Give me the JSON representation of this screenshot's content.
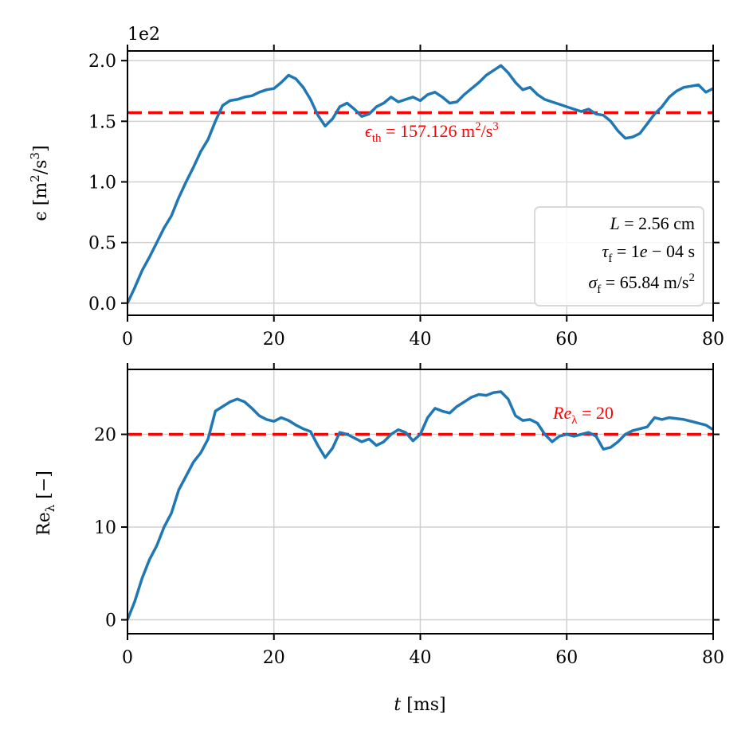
{
  "chart_data": [
    {
      "type": "line",
      "panel": "top",
      "xlabel": "",
      "ylabel": "ε [m²/s³]",
      "offset_text": "1e2",
      "xlim": [
        0,
        80
      ],
      "ylim": [
        -0.1,
        2.08
      ],
      "xticks": [
        0,
        20,
        40,
        60,
        80
      ],
      "xtick_labels": [
        "0",
        "20",
        "40",
        "60",
        "80"
      ],
      "yticks": [
        0.0,
        0.5,
        1.0,
        1.5,
        2.0
      ],
      "ytick_labels": [
        "0.0",
        "0.5",
        "1.0",
        "1.5",
        "2.0"
      ],
      "grid": true,
      "series": [
        {
          "name": "epsilon",
          "color": "#1f77b4",
          "x": [
            0,
            1,
            2,
            3,
            4,
            5,
            6,
            7,
            8,
            9,
            10,
            11,
            12,
            13,
            14,
            15,
            16,
            17,
            18,
            19,
            20,
            21,
            22,
            23,
            24,
            25,
            26,
            27,
            28,
            29,
            30,
            31,
            32,
            33,
            34,
            35,
            36,
            37,
            38,
            39,
            40,
            41,
            42,
            43,
            44,
            45,
            46,
            47,
            48,
            49,
            50,
            51,
            52,
            53,
            54,
            55,
            56,
            57,
            58,
            59,
            60,
            61,
            62,
            63,
            64,
            65,
            66,
            67,
            68,
            69,
            70,
            71,
            72,
            73,
            74,
            75,
            76,
            77,
            78,
            79,
            80
          ],
          "values": [
            0.0,
            0.13,
            0.27,
            0.38,
            0.5,
            0.62,
            0.72,
            0.87,
            1.0,
            1.12,
            1.25,
            1.35,
            1.5,
            1.63,
            1.67,
            1.68,
            1.7,
            1.71,
            1.74,
            1.76,
            1.77,
            1.82,
            1.88,
            1.85,
            1.78,
            1.68,
            1.55,
            1.46,
            1.52,
            1.62,
            1.65,
            1.6,
            1.54,
            1.56,
            1.62,
            1.65,
            1.7,
            1.66,
            1.68,
            1.7,
            1.67,
            1.72,
            1.74,
            1.7,
            1.65,
            1.66,
            1.72,
            1.77,
            1.82,
            1.88,
            1.92,
            1.96,
            1.9,
            1.82,
            1.76,
            1.78,
            1.72,
            1.68,
            1.66,
            1.64,
            1.62,
            1.6,
            1.58,
            1.6,
            1.56,
            1.55,
            1.5,
            1.42,
            1.36,
            1.37,
            1.4,
            1.48,
            1.56,
            1.62,
            1.7,
            1.75,
            1.78,
            1.79,
            1.8,
            1.74,
            1.77
          ]
        }
      ],
      "reference": {
        "value": 1.57126,
        "color": "#ff0000",
        "label": "ε_th = 157.126 m²/s³"
      },
      "annotation_box": {
        "lines": [
          "L = 2.56 cm",
          "τ_f = 1e − 04 s",
          "σ_f = 65.84 m/s²"
        ],
        "placement": "lower-right"
      }
    },
    {
      "type": "line",
      "panel": "bottom",
      "xlabel": "t [ms]",
      "ylabel": "Re_λ [−]",
      "xlim": [
        0,
        80
      ],
      "ylim": [
        -1.5,
        27
      ],
      "xticks": [
        0,
        20,
        40,
        60,
        80
      ],
      "xtick_labels": [
        "0",
        "20",
        "40",
        "60",
        "80"
      ],
      "yticks": [
        0,
        10,
        20
      ],
      "ytick_labels": [
        "0",
        "10",
        "20"
      ],
      "grid": true,
      "series": [
        {
          "name": "Re_lambda",
          "color": "#1f77b4",
          "x": [
            0,
            1,
            2,
            3,
            4,
            5,
            6,
            7,
            8,
            9,
            10,
            11,
            12,
            13,
            14,
            15,
            16,
            17,
            18,
            19,
            20,
            21,
            22,
            23,
            24,
            25,
            26,
            27,
            28,
            29,
            30,
            31,
            32,
            33,
            34,
            35,
            36,
            37,
            38,
            39,
            40,
            41,
            42,
            43,
            44,
            45,
            46,
            47,
            48,
            49,
            50,
            51,
            52,
            53,
            54,
            55,
            56,
            57,
            58,
            59,
            60,
            61,
            62,
            63,
            64,
            65,
            66,
            67,
            68,
            69,
            70,
            71,
            72,
            73,
            74,
            75,
            76,
            77,
            78,
            79,
            80
          ],
          "values": [
            0.0,
            2.0,
            4.5,
            6.5,
            8.0,
            10.0,
            11.5,
            14.0,
            15.5,
            17.0,
            18.0,
            19.5,
            22.5,
            23.0,
            23.5,
            23.8,
            23.5,
            22.8,
            22.0,
            21.6,
            21.4,
            21.8,
            21.5,
            21.0,
            20.6,
            20.3,
            18.8,
            17.5,
            18.5,
            20.2,
            20.0,
            19.6,
            19.2,
            19.5,
            18.8,
            19.2,
            20.0,
            20.5,
            20.2,
            19.3,
            20.0,
            21.8,
            22.8,
            22.5,
            22.3,
            23.0,
            23.5,
            24.0,
            24.3,
            24.2,
            24.5,
            24.6,
            23.8,
            22.0,
            21.5,
            21.6,
            21.2,
            20.0,
            19.2,
            19.8,
            20.0,
            19.8,
            20.0,
            20.2,
            19.8,
            18.4,
            18.6,
            19.2,
            20.0,
            20.4,
            20.6,
            20.8,
            21.8,
            21.6,
            21.8,
            21.7,
            21.6,
            21.4,
            21.2,
            21.0,
            20.5
          ]
        }
      ],
      "reference": {
        "value": 20,
        "color": "#ff0000",
        "label": "Re_λ = 20"
      }
    }
  ]
}
